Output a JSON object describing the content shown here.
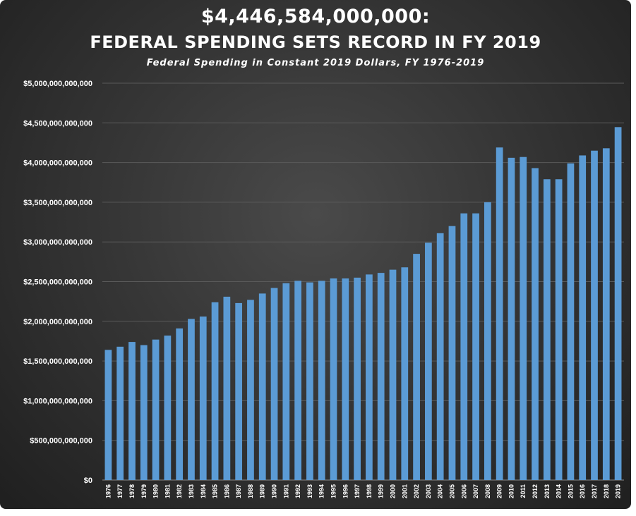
{
  "chart_data": {
    "type": "bar",
    "title": "$4,446,584,000,000:",
    "title_line2": "FEDERAL SPENDING SETS RECORD IN FY 2019",
    "subtitle": "Federal Spending in Constant 2019 Dollars, FY 1976-2019",
    "xlabel": "",
    "ylabel": "",
    "ylim": [
      0,
      5000000000000
    ],
    "grid": true,
    "bar_color": "#5b9bd5",
    "background_color": "#333333",
    "y_ticks": [
      "$0",
      "$500,000,000,000",
      "$1,000,000,000,000",
      "$1,500,000,000,000",
      "$2,000,000,000,000",
      "$2,500,000,000,000",
      "$3,000,000,000,000",
      "$3,500,000,000,000",
      "$4,000,000,000,000",
      "$4,500,000,000,000",
      "$5,000,000,000,000"
    ],
    "y_tick_values": [
      0,
      500000000000,
      1000000000000,
      1500000000000,
      2000000000000,
      2500000000000,
      3000000000000,
      3500000000000,
      4000000000000,
      4500000000000,
      5000000000000
    ],
    "categories": [
      "1976",
      "1977",
      "1978",
      "1979",
      "1980",
      "1981",
      "1982",
      "1983",
      "1984",
      "1985",
      "1986",
      "1987",
      "1988",
      "1989",
      "1990",
      "1991",
      "1992",
      "1993",
      "1994",
      "1995",
      "1996",
      "1997",
      "1998",
      "1999",
      "2000",
      "2001",
      "2002",
      "2003",
      "2004",
      "2005",
      "2006",
      "2007",
      "2008",
      "2009",
      "2010",
      "2011",
      "2012",
      "2013",
      "2014",
      "2015",
      "2016",
      "2017",
      "2018",
      "2019"
    ],
    "values": [
      1640000000000,
      1680000000000,
      1740000000000,
      1700000000000,
      1770000000000,
      1820000000000,
      1910000000000,
      2030000000000,
      2060000000000,
      2240000000000,
      2310000000000,
      2230000000000,
      2270000000000,
      2350000000000,
      2420000000000,
      2480000000000,
      2510000000000,
      2490000000000,
      2510000000000,
      2540000000000,
      2540000000000,
      2550000000000,
      2590000000000,
      2610000000000,
      2650000000000,
      2680000000000,
      2850000000000,
      2990000000000,
      3110000000000,
      3200000000000,
      3360000000000,
      3360000000000,
      3500000000000,
      4190000000000,
      4060000000000,
      4070000000000,
      3930000000000,
      3790000000000,
      3790000000000,
      3990000000000,
      4090000000000,
      4150000000000,
      4180000000000,
      4446584000000
    ]
  }
}
